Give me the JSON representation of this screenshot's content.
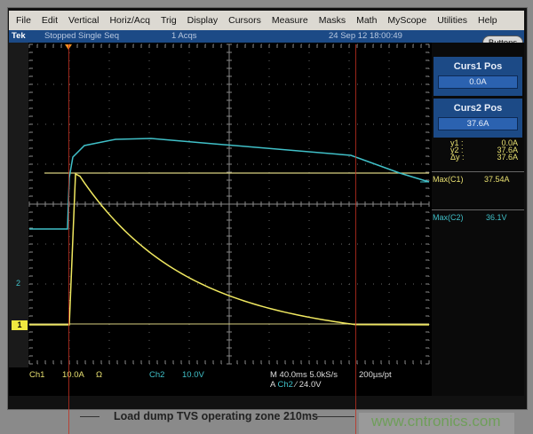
{
  "menu": [
    "File",
    "Edit",
    "Vertical",
    "Horiz/Acq",
    "Trig",
    "Display",
    "Cursors",
    "Measure",
    "Masks",
    "Math",
    "MyScope",
    "Utilities",
    "Help"
  ],
  "status": {
    "brand": "Tek",
    "state": "Stopped  Single Seq",
    "acqs": "1 Acqs",
    "datetime": "24 Sep 12 18:00:49"
  },
  "buttons_label": "Buttons",
  "curs1": {
    "title": "Curs1 Pos",
    "value": "0.0A"
  },
  "curs2": {
    "title": "Curs2 Pos",
    "value": "37.6A"
  },
  "readout": {
    "y1_label": "y1 :",
    "y1": "0.0A",
    "y2_label": "y2 :",
    "y2": "37.6A",
    "dy_label": "Δy :",
    "dy": "37.6A"
  },
  "meas": [
    {
      "label": "Max(C1)",
      "value": "37.54A"
    },
    {
      "label": "Max(C2)",
      "value": "36.1V"
    }
  ],
  "bottom": {
    "ch1": "Ch1",
    "ch1_scale": "10.0A",
    "ch1_coupling": "Ω",
    "ch2": "Ch2",
    "ch2_scale": "10.0V",
    "timebase": "M 40.0ms 5.0kS/s",
    "resolution": "200µs/pt",
    "trig_prefix": "A",
    "trig_src": "Ch2",
    "trig_slope": "⁄",
    "trig_level": "24.0V"
  },
  "markers": {
    "ch1": "1",
    "ch2": "2"
  },
  "caption": "Load dump TVS operating zone  210ms",
  "watermark": "www.cntronics.com",
  "colors": {
    "ch1": "#e8e070",
    "ch2": "#40c0c8",
    "cursor_marker": "#c03020",
    "status_bar": "#1c4a86"
  }
}
